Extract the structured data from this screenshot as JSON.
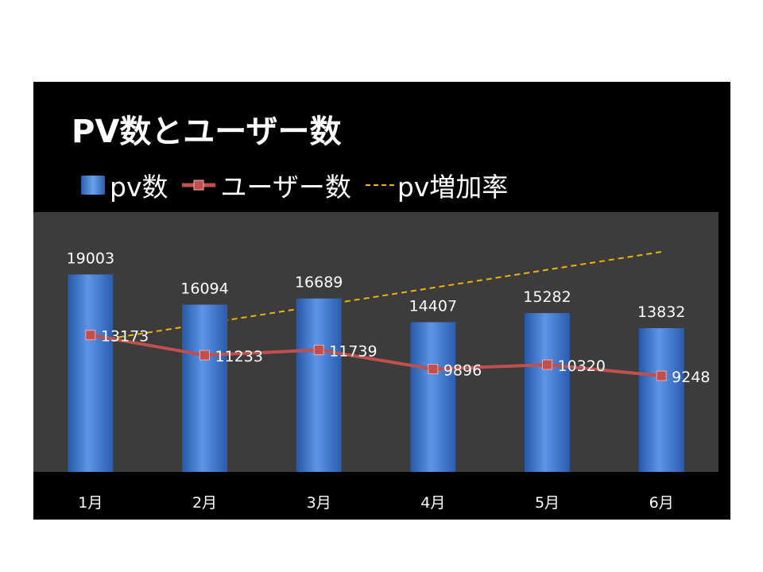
{
  "chart_data": {
    "type": "bar",
    "title": "PV数とユーザー数",
    "categories": [
      "1月",
      "2月",
      "3月",
      "4月",
      "5月",
      "6月"
    ],
    "series": [
      {
        "name": "pv数",
        "type": "bar",
        "values": [
          19003,
          16094,
          16689,
          14407,
          15282,
          13832
        ],
        "color": "#3f79d6"
      },
      {
        "name": "ユーザー数",
        "type": "line",
        "values": [
          13173,
          11233,
          11739,
          9896,
          10320,
          9248
        ],
        "color": "#c0504d"
      },
      {
        "name": "pv増加率",
        "type": "line-dashed",
        "color": "#f0b400"
      }
    ],
    "ylim": [
      0,
      25000
    ],
    "legend_position": "top",
    "grid": false,
    "colors": {
      "frame": "#000000",
      "plot_area": "#3c3c3c",
      "text": "#ffffff"
    }
  }
}
